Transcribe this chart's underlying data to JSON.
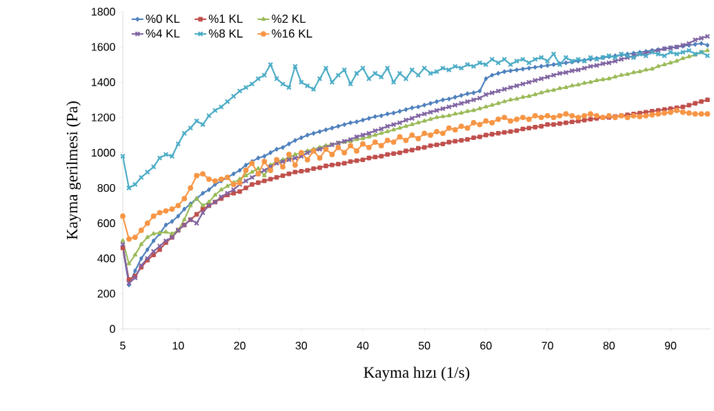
{
  "chart_data": {
    "type": "line",
    "xlabel": "Kayma hızı (1/s)",
    "ylabel": "Kayma gerilmesi  (Pa)",
    "categories": [
      "5",
      null,
      null,
      null,
      null,
      null,
      null,
      null,
      null,
      "10",
      null,
      null,
      null,
      null,
      null,
      null,
      null,
      null,
      null,
      "20",
      null,
      null,
      null,
      null,
      null,
      null,
      null,
      null,
      null,
      "30",
      null,
      null,
      null,
      null,
      null,
      null,
      null,
      null,
      null,
      "40",
      null,
      null,
      null,
      null,
      null,
      null,
      null,
      null,
      null,
      "50",
      null,
      null,
      null,
      null,
      null,
      null,
      null,
      null,
      null,
      "60",
      null,
      null,
      null,
      null,
      null,
      null,
      null,
      null,
      null,
      "70",
      null,
      null,
      null,
      null,
      null,
      null,
      null,
      null,
      null,
      "80",
      null,
      null,
      null,
      null,
      null,
      null,
      null,
      null,
      null,
      "90",
      null,
      null,
      null,
      null,
      null,
      null
    ],
    "ylim": [
      0,
      1800
    ],
    "yticks": [
      0,
      200,
      400,
      600,
      800,
      1000,
      1200,
      1400,
      1600,
      1800
    ],
    "legend": "top left",
    "line_style": "solid",
    "series": [
      {
        "name": "%0 KL",
        "color": "#4f81bd",
        "marker": "diamond",
        "values": [
          460,
          250,
          330,
          400,
          450,
          500,
          540,
          590,
          610,
          640,
          680,
          710,
          740,
          770,
          790,
          820,
          840,
          860,
          880,
          900,
          930,
          950,
          970,
          980,
          1000,
          1020,
          1030,
          1050,
          1070,
          1085,
          1100,
          1110,
          1120,
          1130,
          1140,
          1150,
          1160,
          1170,
          1175,
          1185,
          1195,
          1205,
          1210,
          1220,
          1225,
          1235,
          1245,
          1255,
          1260,
          1270,
          1280,
          1290,
          1300,
          1305,
          1315,
          1325,
          1335,
          1340,
          1350,
          1420,
          1440,
          1450,
          1460,
          1465,
          1470,
          1475,
          1480,
          1485,
          1490,
          1495,
          1500,
          1505,
          1510,
          1515,
          1520,
          1525,
          1530,
          1535,
          1540,
          1545,
          1550,
          1555,
          1560,
          1565,
          1570,
          1575,
          1580,
          1585,
          1590,
          1595,
          1600,
          1605,
          1610,
          1615,
          1620,
          1610
        ]
      },
      {
        "name": "%1 KL",
        "color": "#c0504d",
        "marker": "square",
        "values": [
          460,
          280,
          300,
          350,
          390,
          420,
          450,
          490,
          520,
          560,
          590,
          620,
          650,
          680,
          700,
          720,
          740,
          760,
          770,
          780,
          800,
          820,
          830,
          840,
          850,
          860,
          870,
          880,
          890,
          895,
          900,
          910,
          915,
          925,
          930,
          935,
          940,
          950,
          955,
          960,
          970,
          975,
          980,
          990,
          995,
          1000,
          1010,
          1015,
          1025,
          1030,
          1040,
          1045,
          1050,
          1060,
          1065,
          1070,
          1075,
          1085,
          1090,
          1100,
          1105,
          1110,
          1115,
          1120,
          1125,
          1135,
          1140,
          1145,
          1150,
          1160,
          1160,
          1165,
          1170,
          1175,
          1180,
          1185,
          1190,
          1195,
          1200,
          1200,
          1205,
          1210,
          1215,
          1220,
          1225,
          1230,
          1235,
          1240,
          1245,
          1250,
          1255,
          1260,
          1270,
          1280,
          1290,
          1300
        ]
      },
      {
        "name": "%2 KL",
        "color": "#9bbb59",
        "marker": "triangle",
        "values": [
          500,
          370,
          420,
          480,
          520,
          540,
          545,
          550,
          540,
          560,
          620,
          700,
          740,
          700,
          720,
          760,
          790,
          810,
          830,
          850,
          870,
          890,
          910,
          870,
          930,
          950,
          960,
          970,
          990,
          1000,
          1010,
          1020,
          1030,
          1040,
          1045,
          1055,
          1060,
          1065,
          1075,
          1080,
          1090,
          1100,
          1110,
          1120,
          1130,
          1140,
          1150,
          1160,
          1170,
          1180,
          1190,
          1200,
          1205,
          1210,
          1220,
          1225,
          1235,
          1240,
          1250,
          1260,
          1270,
          1280,
          1290,
          1300,
          1305,
          1315,
          1320,
          1330,
          1340,
          1350,
          1355,
          1365,
          1370,
          1380,
          1385,
          1395,
          1400,
          1410,
          1415,
          1420,
          1430,
          1440,
          1445,
          1455,
          1460,
          1470,
          1475,
          1490,
          1500,
          1510,
          1520,
          1535,
          1545,
          1555,
          1570,
          1580
        ]
      },
      {
        "name": "%4 KL",
        "color": "#8064a2",
        "marker": "cross",
        "values": [
          480,
          260,
          290,
          360,
          400,
          440,
          470,
          500,
          520,
          560,
          590,
          620,
          600,
          660,
          700,
          720,
          750,
          770,
          790,
          820,
          840,
          860,
          880,
          900,
          920,
          940,
          950,
          960,
          970,
          980,
          1000,
          1010,
          1020,
          1030,
          1045,
          1055,
          1065,
          1075,
          1090,
          1100,
          1110,
          1125,
          1135,
          1150,
          1160,
          1170,
          1185,
          1195,
          1210,
          1220,
          1230,
          1240,
          1250,
          1260,
          1270,
          1280,
          1290,
          1300,
          1310,
          1330,
          1340,
          1350,
          1360,
          1370,
          1380,
          1390,
          1400,
          1410,
          1420,
          1430,
          1440,
          1450,
          1455,
          1465,
          1470,
          1480,
          1490,
          1495,
          1505,
          1510,
          1520,
          1530,
          1540,
          1550,
          1560,
          1565,
          1575,
          1580,
          1590,
          1595,
          1600,
          1610,
          1620,
          1640,
          1650,
          1660
        ]
      },
      {
        "name": "%8 KL",
        "color": "#4bacc6",
        "marker": "cross",
        "values": [
          980,
          800,
          820,
          860,
          890,
          920,
          970,
          990,
          980,
          1050,
          1110,
          1140,
          1180,
          1160,
          1210,
          1240,
          1260,
          1290,
          1320,
          1350,
          1370,
          1390,
          1420,
          1440,
          1500,
          1420,
          1390,
          1370,
          1490,
          1400,
          1380,
          1360,
          1420,
          1480,
          1400,
          1440,
          1470,
          1390,
          1450,
          1480,
          1420,
          1450,
          1430,
          1480,
          1400,
          1450,
          1420,
          1470,
          1440,
          1480,
          1450,
          1460,
          1480,
          1470,
          1490,
          1480,
          1500,
          1490,
          1510,
          1500,
          1530,
          1510,
          1530,
          1500,
          1520,
          1530,
          1510,
          1530,
          1540,
          1520,
          1560,
          1500,
          1540,
          1520,
          1530,
          1520,
          1540,
          1530,
          1540,
          1550,
          1540,
          1560,
          1550,
          1540,
          1560,
          1550,
          1570,
          1560,
          1550,
          1570,
          1560,
          1570,
          1580,
          1560,
          1570,
          1550
        ]
      },
      {
        "name": "%16 KL",
        "color": "#f79646",
        "marker": "circle",
        "values": [
          640,
          510,
          520,
          560,
          600,
          640,
          660,
          670,
          680,
          700,
          740,
          800,
          870,
          880,
          850,
          840,
          850,
          860,
          820,
          830,
          900,
          940,
          880,
          950,
          900,
          960,
          920,
          990,
          930,
          1000,
          960,
          1010,
          970,
          1020,
          990,
          1030,
          1000,
          1040,
          1010,
          1050,
          1030,
          1060,
          1040,
          1070,
          1060,
          1090,
          1070,
          1100,
          1080,
          1110,
          1100,
          1120,
          1110,
          1140,
          1130,
          1150,
          1140,
          1170,
          1160,
          1180,
          1170,
          1190,
          1200,
          1180,
          1190,
          1200,
          1190,
          1210,
          1200,
          1210,
          1200,
          1210,
          1220,
          1210,
          1200,
          1210,
          1220,
          1210,
          1200,
          1210,
          1200,
          1210,
          1200,
          1210,
          1205,
          1210,
          1215,
          1220,
          1225,
          1230,
          1240,
          1230,
          1225,
          1220,
          1220,
          1220
        ]
      }
    ]
  }
}
